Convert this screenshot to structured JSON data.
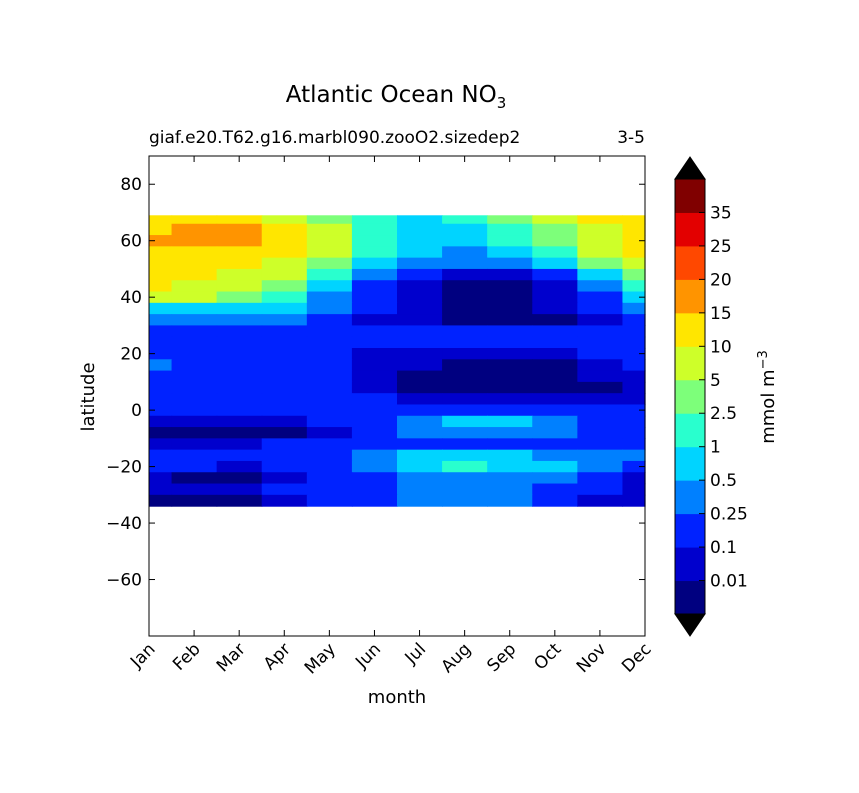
{
  "chart_data": {
    "type": "heatmap",
    "title": "Atlantic Ocean NO",
    "title_subscript": "3",
    "subtitle_left": "giaf.e20.T62.g16.marbl090.zooO2.sizedep2",
    "subtitle_right": "3-5",
    "xlabel": "month",
    "ylabel": "latitude",
    "x_ticks": [
      "Jan",
      "Feb",
      "Mar",
      "Apr",
      "May",
      "Jun",
      "Jul",
      "Aug",
      "Sep",
      "Oct",
      "Nov",
      "Dec"
    ],
    "y_ticks": [
      80,
      60,
      40,
      20,
      0,
      -20,
      -40,
      -60
    ],
    "y_tick_labels": [
      "80",
      "60",
      "40",
      "20",
      "0",
      "−20",
      "−40",
      "−60"
    ],
    "xlim": [
      0,
      11
    ],
    "ylim": [
      -80,
      90
    ],
    "data_lat_range": [
      -34,
      69
    ],
    "colorbar": {
      "label": "mmol m",
      "label_superscript": "−3",
      "levels": [
        0.01,
        0.1,
        0.25,
        0.5,
        1,
        2.5,
        5,
        10,
        15,
        20,
        25,
        35
      ],
      "level_labels": [
        "0.01",
        "0.1",
        "0.25",
        "0.5",
        "1",
        "2.5",
        "5",
        "10",
        "15",
        "20",
        "25",
        "35"
      ],
      "colors": [
        "#000080",
        "#0000cd",
        "#0022ff",
        "#0080ff",
        "#00d4ff",
        "#29ffce",
        "#7dff7a",
        "#ceff29",
        "#ffe600",
        "#ff9400",
        "#ff4800",
        "#e30000",
        "#800000"
      ],
      "extend": "both",
      "under_color": "#000000",
      "over_color": "#000000"
    },
    "months": [
      0,
      1,
      2,
      3,
      4,
      5,
      6,
      7,
      8,
      9,
      10,
      11
    ],
    "latitudes": [
      68,
      64,
      60,
      56,
      52,
      48,
      44,
      40,
      36,
      32,
      28,
      24,
      20,
      16,
      12,
      8,
      4,
      0,
      -4,
      -8,
      -12,
      -16,
      -20,
      -24,
      -28,
      -32
    ],
    "z": [
      [
        8,
        8,
        8,
        7,
        6,
        5,
        4,
        5,
        6,
        7,
        8,
        8
      ],
      [
        8,
        9,
        9,
        8,
        7,
        5,
        4,
        4,
        5,
        6,
        7,
        8
      ],
      [
        9,
        9,
        9,
        8,
        7,
        5,
        4,
        4,
        5,
        6,
        7,
        8
      ],
      [
        8,
        8,
        8,
        8,
        7,
        5,
        4,
        3,
        4,
        5,
        7,
        8
      ],
      [
        8,
        8,
        8,
        7,
        6,
        4,
        3,
        3,
        3,
        4,
        6,
        7
      ],
      [
        8,
        8,
        7,
        7,
        5,
        3,
        2,
        1,
        1,
        2,
        4,
        6
      ],
      [
        8,
        7,
        7,
        6,
        4,
        2,
        1,
        0,
        0,
        1,
        3,
        5
      ],
      [
        7,
        7,
        6,
        5,
        3,
        2,
        1,
        0,
        0,
        1,
        2,
        4
      ],
      [
        4,
        4,
        4,
        4,
        3,
        2,
        1,
        0,
        0,
        1,
        2,
        3
      ],
      [
        3,
        3,
        3,
        3,
        2,
        1,
        1,
        0,
        0,
        0,
        1,
        2
      ],
      [
        2,
        2,
        2,
        2,
        2,
        2,
        2,
        2,
        2,
        2,
        2,
        2
      ],
      [
        2,
        2,
        2,
        2,
        2,
        2,
        2,
        2,
        2,
        2,
        2,
        2
      ],
      [
        2,
        2,
        2,
        2,
        2,
        1,
        1,
        1,
        1,
        1,
        2,
        2
      ],
      [
        3,
        2,
        2,
        2,
        2,
        1,
        1,
        0,
        0,
        0,
        1,
        2
      ],
      [
        2,
        2,
        2,
        2,
        2,
        1,
        0,
        0,
        0,
        0,
        1,
        1
      ],
      [
        2,
        2,
        2,
        2,
        2,
        1,
        0,
        0,
        0,
        0,
        0,
        1
      ],
      [
        2,
        2,
        2,
        2,
        2,
        2,
        1,
        1,
        1,
        1,
        1,
        1
      ],
      [
        2,
        2,
        2,
        2,
        2,
        2,
        2,
        2,
        2,
        2,
        2,
        2
      ],
      [
        1,
        1,
        1,
        1,
        2,
        2,
        3,
        4,
        4,
        3,
        2,
        2
      ],
      [
        0,
        0,
        0,
        0,
        1,
        2,
        3,
        3,
        3,
        3,
        2,
        2
      ],
      [
        1,
        1,
        1,
        2,
        2,
        2,
        2,
        2,
        2,
        2,
        2,
        2
      ],
      [
        2,
        2,
        2,
        2,
        2,
        3,
        4,
        4,
        4,
        3,
        3,
        3
      ],
      [
        2,
        2,
        1,
        2,
        2,
        3,
        4,
        5,
        4,
        4,
        3,
        2
      ],
      [
        1,
        0,
        0,
        1,
        2,
        2,
        3,
        3,
        3,
        3,
        2,
        1
      ],
      [
        1,
        1,
        1,
        2,
        2,
        2,
        3,
        3,
        3,
        2,
        2,
        1
      ],
      [
        0,
        0,
        0,
        1,
        2,
        2,
        3,
        3,
        3,
        2,
        1,
        1
      ]
    ]
  }
}
